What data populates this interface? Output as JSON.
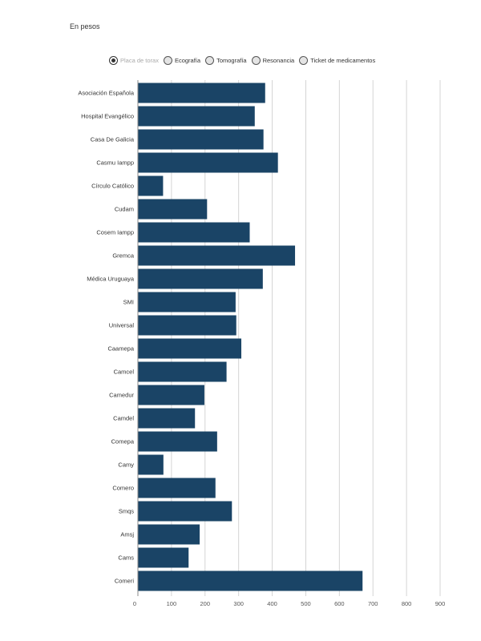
{
  "subtitle": "En pesos",
  "legend": {
    "items": [
      {
        "label": "Placa de torax",
        "selected": true
      },
      {
        "label": "Ecografía",
        "selected": false
      },
      {
        "label": "Tomografía",
        "selected": false
      },
      {
        "label": "Resonancia",
        "selected": false
      },
      {
        "label": "Ticket de medicamentos",
        "selected": false
      }
    ]
  },
  "colors": {
    "bar": "#1a4466",
    "grid": "#d4d4d4",
    "axis": "#888888"
  },
  "chart_data": {
    "type": "bar",
    "orientation": "horizontal",
    "categories": [
      "Asociación Española",
      "Hospital Evangélico",
      "Casa De Galicia",
      "Casmu Iampp",
      "Círculo Católico",
      "Cudam",
      "Cosem Iampp",
      "Gremca",
      "Médica Uruguaya",
      "SMI",
      "Universal",
      "Caamepa",
      "Camcel",
      "Camedur",
      "Camdel",
      "Comepa",
      "Camy",
      "Comero",
      "Smqs",
      "Amsj",
      "Cams",
      "Comeri"
    ],
    "values": [
      379,
      348,
      374,
      417,
      75,
      206,
      333,
      468,
      372,
      291,
      293,
      308,
      264,
      198,
      170,
      236,
      76,
      231,
      280,
      184,
      151,
      669
    ],
    "xlim": [
      0,
      900
    ],
    "xticks": [
      0,
      100,
      200,
      300,
      400,
      500,
      600,
      700,
      800,
      900
    ],
    "grid": true
  }
}
